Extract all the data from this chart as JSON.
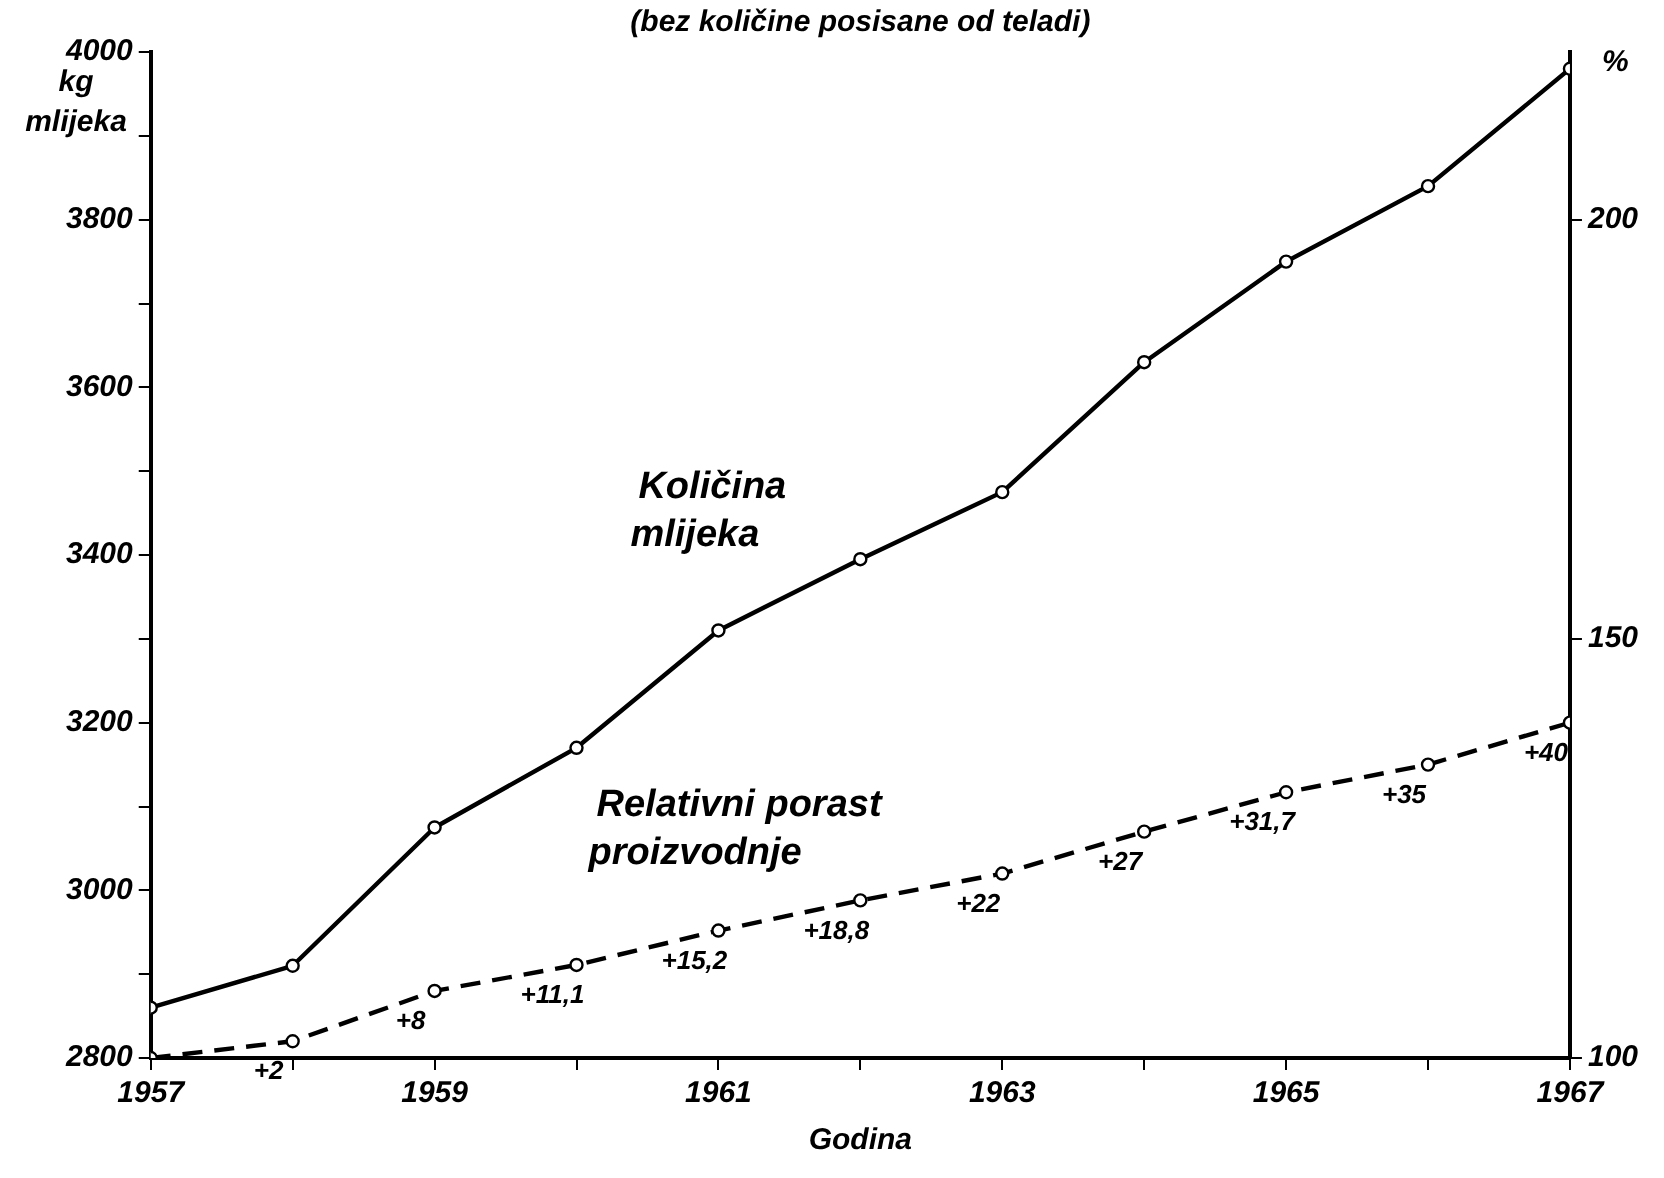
{
  "chart_data": {
    "type": "line",
    "title": "(bez količine posisane od teladi)",
    "xlabel": "Godina",
    "ylabel": "kg mlijeka",
    "y2label": "%",
    "x": [
      1957,
      1958,
      1959,
      1960,
      1961,
      1962,
      1963,
      1964,
      1965,
      1966,
      1967
    ],
    "xlim": [
      1957,
      1967
    ],
    "xticks": [
      1957,
      {
        "value": 1958,
        "label": null
      },
      1959,
      {
        "value": 1960,
        "label": null
      },
      1961,
      {
        "value": 1962,
        "label": null
      },
      1963,
      {
        "value": 1964,
        "label": null
      },
      1965,
      {
        "value": 1966,
        "label": null
      },
      1967
    ],
    "ylim": [
      2800,
      4000
    ],
    "yticks": [
      2800,
      {
        "value": 2900,
        "label": null
      },
      3000,
      {
        "value": 3100,
        "label": null
      },
      3200,
      {
        "value": 3300,
        "label": null
      },
      3400,
      {
        "value": 3500,
        "label": null
      },
      3600,
      {
        "value": 3700,
        "label": null
      },
      3800,
      {
        "value": 3900,
        "label": null
      },
      4000
    ],
    "y2lim": [
      100,
      220
    ],
    "y2ticks": [
      100,
      150,
      200
    ],
    "marker": "circle",
    "legend": false,
    "series": [
      {
        "name": "Količina mlijeka",
        "color": "#000000",
        "line_style": "solid",
        "values": [
          2860,
          2910,
          3075,
          3170,
          3310,
          3395,
          3475,
          3630,
          3750,
          3840,
          3980
        ]
      },
      {
        "name": "Relativni porast proizvodnje",
        "color": "#000000",
        "line_style": "dashed",
        "axis": "y2",
        "values": [
          100,
          102,
          108,
          111.1,
          115.2,
          118.8,
          122,
          127,
          131.7,
          135,
          140
        ]
      }
    ],
    "annotations": [
      {
        "text": "+2",
        "x": 1958,
        "y": 2820
      },
      {
        "text": "+8",
        "x": 1959,
        "y": 2880
      },
      {
        "text": "+11,1",
        "x": 1960,
        "y": 2911
      },
      {
        "text": "+15,2",
        "x": 1961,
        "y": 2952
      },
      {
        "text": "+18,8",
        "x": 1962,
        "y": 2988
      },
      {
        "text": "+22",
        "x": 1963,
        "y": 3020
      },
      {
        "text": "+27",
        "x": 1964,
        "y": 3070
      },
      {
        "text": "+31,7",
        "x": 1965,
        "y": 3117
      },
      {
        "text": "+35",
        "x": 1966,
        "y": 3150
      },
      {
        "text": "+40",
        "x": 1967,
        "y": 3200
      }
    ]
  }
}
